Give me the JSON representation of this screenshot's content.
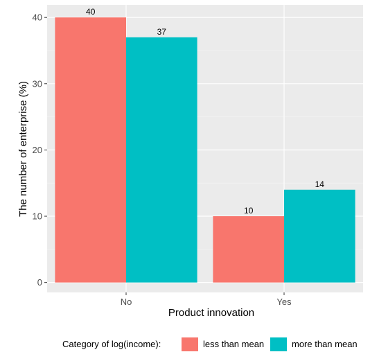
{
  "chart_data": {
    "type": "bar",
    "xlabel": "Product innovation",
    "ylabel": "The number of enterprise (%)",
    "categories": [
      "No",
      "Yes"
    ],
    "series": [
      {
        "name": "less than mean",
        "values": [
          40,
          10
        ],
        "color": "#F8766D"
      },
      {
        "name": "more than mean",
        "values": [
          37,
          14
        ],
        "color": "#00BFC4"
      }
    ],
    "ylim": [
      -1.5,
      41.9
    ],
    "yticks": [
      0,
      10,
      20,
      30,
      40
    ],
    "grid": true,
    "legend": {
      "title": "Category of log(income):",
      "position": "bottom"
    }
  },
  "colors": {
    "panel_bg": "#EBEBEB",
    "grid_major": "#FFFFFF",
    "grid_minor": "#F5F5F5"
  }
}
